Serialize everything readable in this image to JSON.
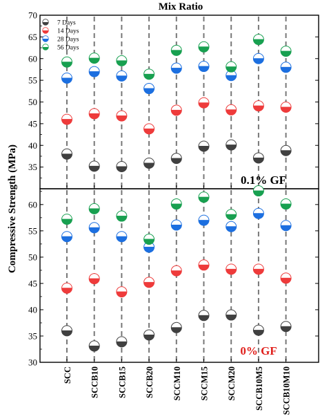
{
  "figure": {
    "top_title": "Mix Ratio",
    "y_label": "Compressive Strength (MPa)"
  },
  "chart_data": [
    {
      "type": "scatter",
      "panel_label": "0.1% GF",
      "categories": [
        "SCC",
        "SCCB10",
        "SCCB15",
        "SCCB20",
        "SCCM10",
        "SCCM15",
        "SCCM20",
        "SCCB10M5",
        "SCCB10M10"
      ],
      "ylim": [
        30,
        70
      ],
      "yticks": [
        30,
        35,
        40,
        45,
        50,
        55,
        60,
        65,
        70
      ],
      "grid": false,
      "legend_position": "top-left",
      "series": [
        {
          "name": "7 Days",
          "color": "#404040",
          "values": [
            38.0,
            35.2,
            35.1,
            35.9,
            37.0,
            39.8,
            40.1,
            37.1,
            38.8
          ]
        },
        {
          "name": "14 Days",
          "color": "#ee3b3b",
          "values": [
            46.0,
            47.3,
            46.8,
            43.8,
            48.1,
            49.8,
            48.2,
            49.1,
            48.8
          ]
        },
        {
          "name": "28 Days",
          "color": "#1c6fe0",
          "values": [
            55.5,
            57.0,
            56.0,
            53.1,
            57.8,
            58.2,
            56.1,
            60.0,
            58.0
          ]
        },
        {
          "name": "56 Days",
          "color": "#18a050",
          "values": [
            59.2,
            60.1,
            59.5,
            56.4,
            61.9,
            62.7,
            58.1,
            64.4,
            61.7
          ]
        }
      ]
    },
    {
      "type": "scatter",
      "panel_label": "0% GF",
      "panel_label_color": "#e0201c",
      "categories": [
        "SCC",
        "SCCB10",
        "SCCB15",
        "SCCB20",
        "SCCM10",
        "SCCM15",
        "SCCM20",
        "SCCB10M5",
        "SCCB10M10"
      ],
      "ylim": [
        30,
        63
      ],
      "yticks": [
        30,
        35,
        40,
        45,
        50,
        55,
        60
      ],
      "grid": false,
      "series": [
        {
          "name": "7 Days",
          "color": "#404040",
          "values": [
            36.0,
            33.1,
            33.9,
            35.2,
            36.6,
            38.9,
            39.0,
            36.1,
            36.8
          ]
        },
        {
          "name": "14 Days",
          "color": "#ee3b3b",
          "values": [
            44.1,
            45.9,
            43.4,
            45.2,
            47.4,
            48.5,
            47.7,
            47.7,
            46.0
          ]
        },
        {
          "name": "28 Days",
          "color": "#1c6fe0",
          "values": [
            53.9,
            55.6,
            53.9,
            51.9,
            56.1,
            57.0,
            55.8,
            58.3,
            56.0
          ]
        },
        {
          "name": "56 Days",
          "color": "#18a050",
          "values": [
            57.2,
            59.2,
            57.8,
            53.4,
            60.1,
            61.4,
            58.1,
            62.6,
            60.1
          ]
        }
      ]
    }
  ]
}
